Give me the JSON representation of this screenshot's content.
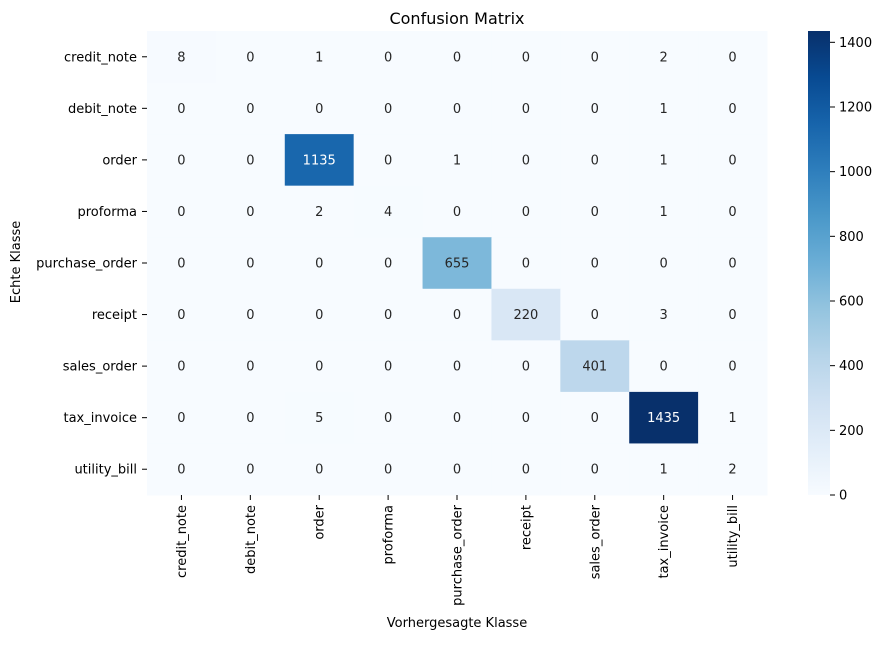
{
  "chart_data": {
    "type": "heatmap",
    "title": "Confusion Matrix",
    "xlabel": "Vorhergesagte Klasse",
    "ylabel": "Echte Klasse",
    "x_categories": [
      "credit_note",
      "debit_note",
      "order",
      "proforma",
      "purchase_order",
      "receipt",
      "sales_order",
      "tax_invoice",
      "utility_bill"
    ],
    "y_categories": [
      "credit_note",
      "debit_note",
      "order",
      "proforma",
      "purchase_order",
      "receipt",
      "sales_order",
      "tax_invoice",
      "utility_bill"
    ],
    "matrix": [
      [
        8,
        0,
        1,
        0,
        0,
        0,
        0,
        2,
        0
      ],
      [
        0,
        0,
        0,
        0,
        0,
        0,
        0,
        1,
        0
      ],
      [
        0,
        0,
        1135,
        0,
        1,
        0,
        0,
        1,
        0
      ],
      [
        0,
        0,
        2,
        4,
        0,
        0,
        0,
        1,
        0
      ],
      [
        0,
        0,
        0,
        0,
        655,
        0,
        0,
        0,
        0
      ],
      [
        0,
        0,
        0,
        0,
        0,
        220,
        0,
        3,
        0
      ],
      [
        0,
        0,
        0,
        0,
        0,
        0,
        401,
        0,
        0
      ],
      [
        0,
        0,
        5,
        0,
        0,
        0,
        0,
        1435,
        1
      ],
      [
        0,
        0,
        0,
        0,
        0,
        0,
        0,
        1,
        2
      ]
    ],
    "colorbar": {
      "min": 0,
      "max": 1435,
      "ticks": [
        0,
        200,
        400,
        600,
        800,
        1000,
        1200,
        1400
      ],
      "colormap": "Blues"
    }
  }
}
